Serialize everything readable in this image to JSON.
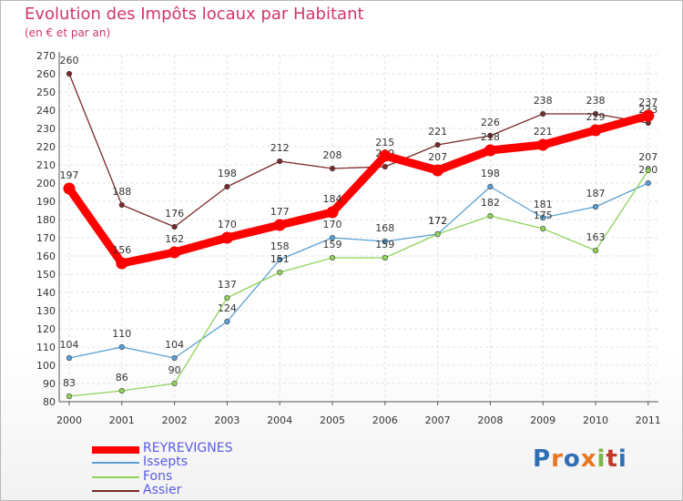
{
  "chart_data": {
    "type": "line",
    "title": "Evolution des Impôts locaux par Habitant",
    "subtitle": "(en € et par an)",
    "xlabel": "",
    "ylabel": "",
    "ylim": [
      80,
      270
    ],
    "ytick_step": 10,
    "grid": true,
    "legend_position": "bottom-left",
    "categories": [
      "2000",
      "2001",
      "2002",
      "2003",
      "2004",
      "2005",
      "2006",
      "2007",
      "2008",
      "2009",
      "2010",
      "2011"
    ],
    "series": [
      {
        "name": "REYREVIGNES",
        "color": "#ff0000",
        "values": [
          197,
          156,
          162,
          170,
          177,
          184,
          215,
          207,
          218,
          221,
          229,
          237
        ]
      },
      {
        "name": "Issepts",
        "color": "#5aa0d4",
        "values": [
          104,
          110,
          104,
          124,
          158,
          170,
          168,
          172,
          198,
          181,
          187,
          200
        ]
      },
      {
        "name": "Fons",
        "color": "#8fd35a",
        "values": [
          83,
          86,
          90,
          137,
          151,
          159,
          159,
          172,
          182,
          175,
          163,
          207
        ]
      },
      {
        "name": "Assier",
        "color": "#7a2a2a",
        "values": [
          260,
          188,
          176,
          198,
          212,
          208,
          209,
          221,
          226,
          238,
          238,
          233
        ]
      }
    ]
  },
  "brand": {
    "text": "Proxiti",
    "colors": [
      "#2f6fb6",
      "#e87722",
      "#2f6fb6",
      "#e87722",
      "#7ab648",
      "#c0392b",
      "#2f6fb6"
    ]
  }
}
